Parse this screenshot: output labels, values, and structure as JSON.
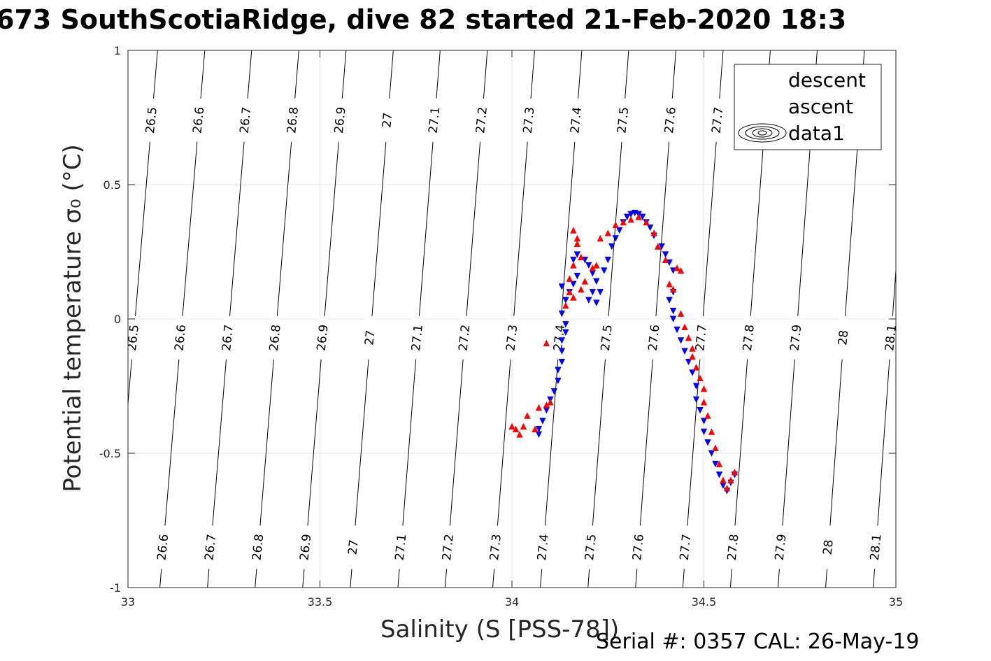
{
  "title": "673 SouthScotiaRidge, dive 82 started 21-Feb-2020 18:3",
  "footer": "Serial #: 0357  CAL: 26-May-19",
  "chart_data": {
    "type": "scatter",
    "xlabel": "Salinity (S [PSS-78])",
    "ylabel": "Potential temperature σ₀ (°C)",
    "xlim": [
      33,
      35
    ],
    "ylim": [
      -1,
      1
    ],
    "xticks": [
      "33",
      "33.5",
      "34",
      "34.5",
      "35"
    ],
    "yticks": [
      "-1",
      "-0.5",
      "0",
      "0.5",
      "1"
    ],
    "grid": true,
    "legend_position": "top-right",
    "legend": [
      {
        "label": "descent",
        "marker": "triangle-down",
        "color": "#0000ff"
      },
      {
        "label": "ascent",
        "marker": "triangle-up",
        "color": "#ff0000"
      },
      {
        "label": "data1",
        "marker": "contour",
        "color": "#000000"
      }
    ],
    "contours": {
      "levels": [
        "26.5",
        "26.6",
        "26.7",
        "26.8",
        "26.9",
        "27",
        "27.1",
        "27.2",
        "27.3",
        "27.4",
        "27.5",
        "27.6",
        "27.7",
        "27.8",
        "27.9",
        "28",
        "28.1"
      ],
      "s_at_theta1": [
        33.077,
        33.2,
        33.322,
        33.445,
        33.568,
        33.691,
        33.813,
        33.936,
        34.059,
        34.182,
        34.304,
        34.427,
        34.55,
        34.673,
        34.795,
        34.918,
        35.041
      ],
      "s_at_thetam1": [
        32.96,
        33.083,
        33.207,
        33.331,
        33.455,
        33.579,
        33.703,
        33.826,
        33.95,
        34.074,
        34.198,
        34.322,
        34.445,
        34.569,
        34.693,
        34.817,
        34.941
      ],
      "label_rows": {
        "top": {
          "theta": 0.74,
          "levels": [
            "26.5",
            "26.6",
            "26.7",
            "26.8",
            "26.9",
            "27",
            "27.1",
            "27.2",
            "27.3",
            "27.4",
            "27.5",
            "27.6",
            "27.7"
          ]
        },
        "middle": {
          "theta": -0.07,
          "levels": [
            "26.5",
            "26.6",
            "26.7",
            "26.8",
            "26.9",
            "27",
            "27.1",
            "27.2",
            "27.3",
            "27.4",
            "27.5",
            "27.6",
            "27.7",
            "27.8",
            "27.9",
            "28",
            "28.1"
          ]
        },
        "bottom": {
          "theta": -0.85,
          "levels": [
            "26.6",
            "26.7",
            "26.8",
            "26.9",
            "27",
            "27.1",
            "27.2",
            "27.3",
            "27.4",
            "27.5",
            "27.6",
            "27.7",
            "27.8",
            "27.9",
            "28",
            "28.1"
          ]
        }
      }
    },
    "series": [
      {
        "name": "descent",
        "color": "#0000ff",
        "marker": "triangle-down",
        "points": [
          [
            34.07,
            -0.43
          ],
          [
            34.07,
            -0.41
          ],
          [
            34.08,
            -0.38
          ],
          [
            34.09,
            -0.34
          ],
          [
            34.1,
            -0.3
          ],
          [
            34.11,
            -0.27
          ],
          [
            34.12,
            -0.23
          ],
          [
            34.12,
            -0.19
          ],
          [
            34.13,
            -0.16
          ],
          [
            34.13,
            -0.12
          ],
          [
            34.13,
            -0.08
          ],
          [
            34.14,
            -0.05
          ],
          [
            34.14,
            -0.02
          ],
          [
            34.13,
            0.02
          ],
          [
            34.14,
            0.07
          ],
          [
            34.13,
            0.12
          ],
          [
            34.15,
            0.1
          ],
          [
            34.16,
            0.13
          ],
          [
            34.17,
            0.16
          ],
          [
            34.16,
            0.22
          ],
          [
            34.17,
            0.24
          ],
          [
            34.19,
            0.22
          ],
          [
            34.2,
            0.2
          ],
          [
            34.21,
            0.17
          ],
          [
            34.22,
            0.14
          ],
          [
            34.21,
            0.1
          ],
          [
            34.2,
            0.07
          ],
          [
            34.22,
            0.06
          ],
          [
            34.23,
            0.1
          ],
          [
            34.24,
            0.18
          ],
          [
            34.25,
            0.22
          ],
          [
            34.26,
            0.27
          ],
          [
            34.27,
            0.3
          ],
          [
            34.28,
            0.33
          ],
          [
            34.29,
            0.36
          ],
          [
            34.3,
            0.38
          ],
          [
            34.31,
            0.39
          ],
          [
            34.32,
            0.395
          ],
          [
            34.33,
            0.39
          ],
          [
            34.34,
            0.38
          ],
          [
            34.35,
            0.36
          ],
          [
            34.36,
            0.34
          ],
          [
            34.37,
            0.31
          ],
          [
            34.39,
            0.27
          ],
          [
            34.4,
            0.24
          ],
          [
            34.41,
            0.21
          ],
          [
            34.42,
            0.18
          ],
          [
            34.42,
            0.1
          ],
          [
            34.41,
            0.07
          ],
          [
            34.42,
            0.03
          ],
          [
            34.42,
            0.0
          ],
          [
            34.43,
            -0.04
          ],
          [
            34.44,
            -0.08
          ],
          [
            34.45,
            -0.12
          ],
          [
            34.46,
            -0.16
          ],
          [
            34.47,
            -0.2
          ],
          [
            34.48,
            -0.25
          ],
          [
            34.48,
            -0.3
          ],
          [
            34.49,
            -0.34
          ],
          [
            34.5,
            -0.38
          ],
          [
            34.5,
            -0.42
          ],
          [
            34.51,
            -0.46
          ],
          [
            34.52,
            -0.5
          ],
          [
            34.53,
            -0.54
          ],
          [
            34.54,
            -0.58
          ],
          [
            34.55,
            -0.62
          ],
          [
            34.56,
            -0.64
          ],
          [
            34.57,
            -0.61
          ],
          [
            34.58,
            -0.58
          ]
        ]
      },
      {
        "name": "ascent",
        "color": "#ff0000",
        "marker": "triangle-up",
        "points": [
          [
            34.0,
            -0.4
          ],
          [
            34.01,
            -0.41
          ],
          [
            34.02,
            -0.43
          ],
          [
            34.03,
            -0.4
          ],
          [
            34.04,
            -0.36
          ],
          [
            34.06,
            -0.41
          ],
          [
            34.07,
            -0.33
          ],
          [
            34.09,
            -0.32
          ],
          [
            34.1,
            -0.31
          ],
          [
            34.09,
            -0.09
          ],
          [
            34.14,
            0.05
          ],
          [
            34.15,
            0.1
          ],
          [
            34.16,
            0.08
          ],
          [
            34.15,
            0.15
          ],
          [
            34.16,
            0.2
          ],
          [
            34.18,
            0.23
          ],
          [
            34.17,
            0.28
          ],
          [
            34.16,
            0.33
          ],
          [
            34.17,
            0.3
          ],
          [
            34.18,
            0.11
          ],
          [
            34.19,
            0.14
          ],
          [
            34.21,
            0.19
          ],
          [
            34.22,
            0.2
          ],
          [
            34.23,
            0.3
          ],
          [
            34.25,
            0.32
          ],
          [
            34.27,
            0.35
          ],
          [
            34.29,
            0.36
          ],
          [
            34.31,
            0.37
          ],
          [
            34.33,
            0.38
          ],
          [
            34.35,
            0.36
          ],
          [
            34.37,
            0.32
          ],
          [
            34.38,
            0.27
          ],
          [
            34.4,
            0.22
          ],
          [
            34.41,
            0.13
          ],
          [
            34.42,
            0.11
          ],
          [
            34.43,
            0.19
          ],
          [
            34.44,
            0.18
          ],
          [
            34.44,
            0.02
          ],
          [
            34.45,
            -0.03
          ],
          [
            34.46,
            -0.07
          ],
          [
            34.47,
            -0.11
          ],
          [
            34.47,
            -0.14
          ],
          [
            34.48,
            -0.18
          ],
          [
            34.49,
            -0.22
          ],
          [
            34.5,
            -0.26
          ],
          [
            34.5,
            -0.31
          ],
          [
            34.51,
            -0.36
          ],
          [
            34.52,
            -0.42
          ],
          [
            34.53,
            -0.48
          ],
          [
            34.54,
            -0.54
          ],
          [
            34.55,
            -0.6
          ],
          [
            34.56,
            -0.63
          ],
          [
            34.57,
            -0.6
          ],
          [
            34.58,
            -0.57
          ]
        ]
      }
    ]
  }
}
